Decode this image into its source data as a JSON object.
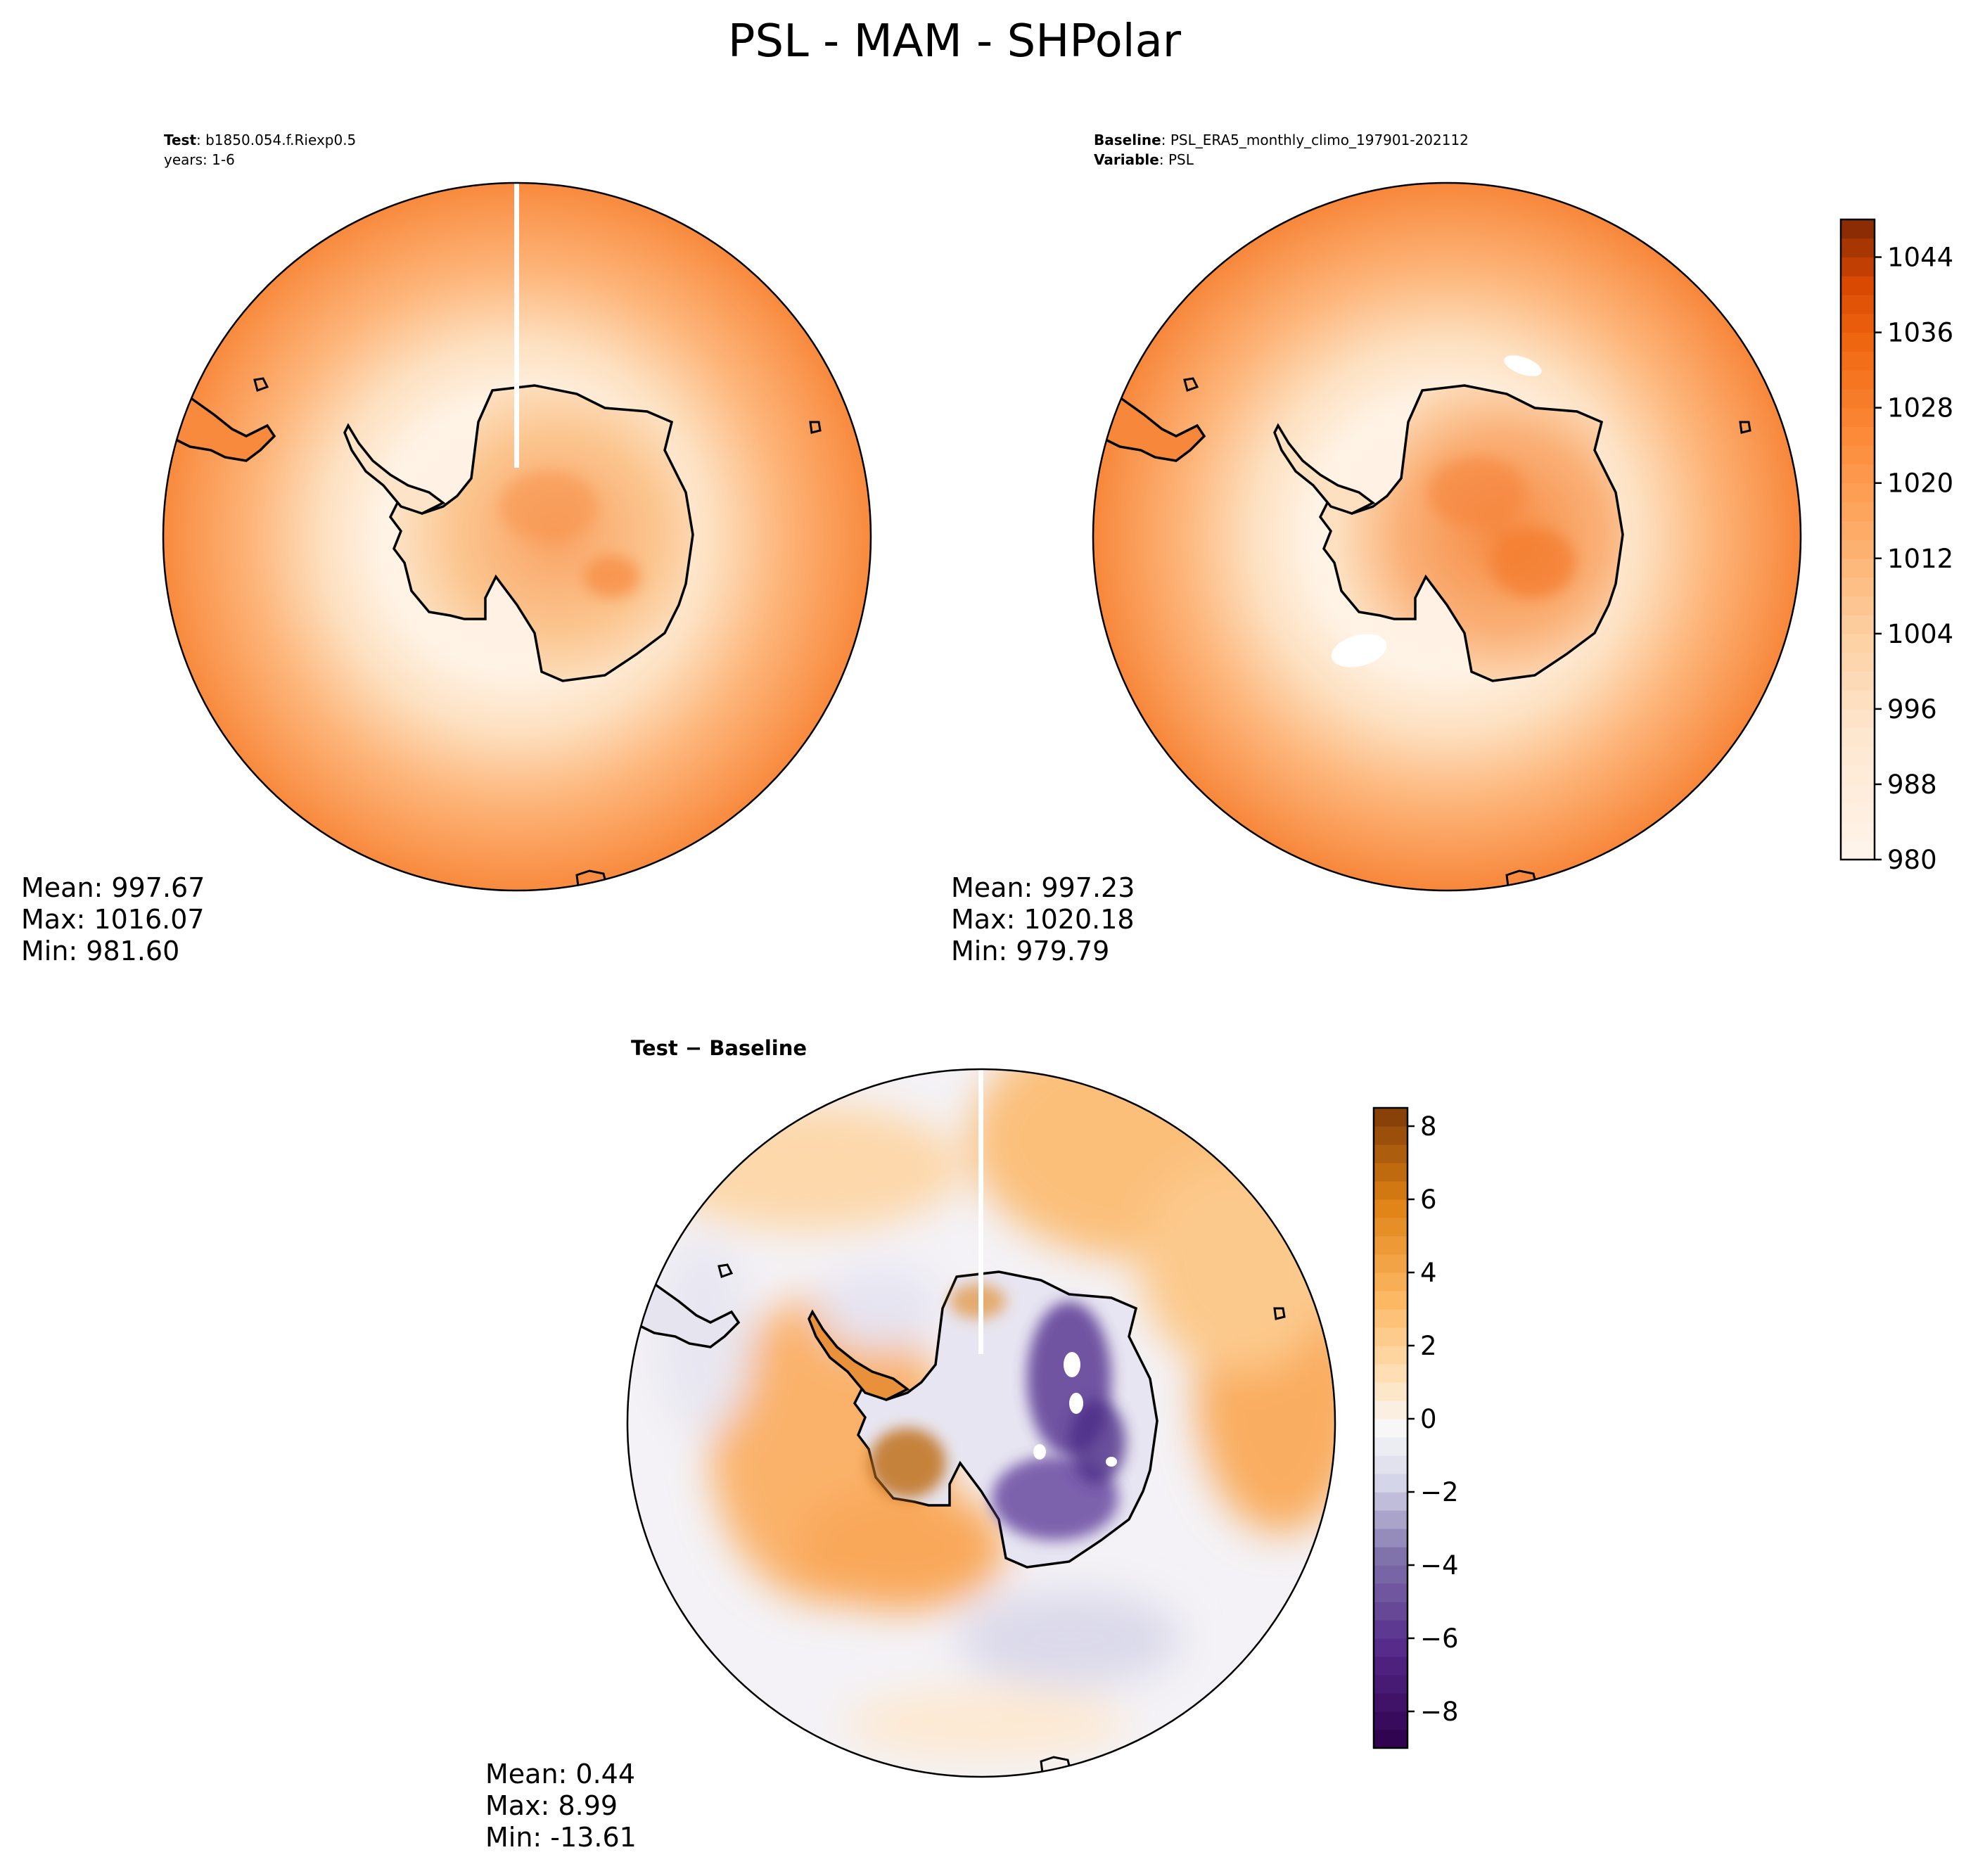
{
  "figure": {
    "suptitle": "PSL - MAM - SHPolar"
  },
  "chart_data": [
    {
      "type": "heatmap",
      "panel": "test",
      "projection": "south-polar-stereographic",
      "header_line1_bold": "Test",
      "header_line1_text": ": b1850.054.f.Riexp0.5",
      "header_line2_text": "years: 1-6",
      "stats": {
        "mean": "Mean: 997.67",
        "max": "Max: 1016.07",
        "min": "Min: 981.60"
      },
      "colormap": "Oranges"
    },
    {
      "type": "heatmap",
      "panel": "baseline",
      "projection": "south-polar-stereographic",
      "header_line1_bold": "Baseline",
      "header_line1_text": ": PSL_ERA5_monthly_climo_197901-202112",
      "header_line2_bold": "Variable",
      "header_line2_text": ": PSL",
      "stats": {
        "mean": "Mean: 997.23",
        "max": "Max: 1020.18",
        "min": "Min: 979.79"
      },
      "colormap": "Oranges",
      "colorbar": {
        "range": [
          980,
          1048
        ],
        "levels": 34,
        "ticks": [
          "980",
          "988",
          "996",
          "1004",
          "1012",
          "1020",
          "1028",
          "1036",
          "1044"
        ],
        "tick_values": [
          980,
          988,
          996,
          1004,
          1012,
          1020,
          1028,
          1036,
          1044
        ]
      }
    },
    {
      "type": "heatmap",
      "panel": "difference",
      "projection": "south-polar-stereographic",
      "title": "Test − Baseline",
      "stats": {
        "mean": "Mean:  0.44",
        "max": "Max:  8.99",
        "min": "Min: -13.61"
      },
      "colormap": "PuOr_r",
      "colorbar": {
        "range": [
          -9,
          8.5
        ],
        "levels": 35,
        "ticks": [
          "−8",
          "−6",
          "−4",
          "−2",
          "0",
          "2",
          "4",
          "6",
          "8"
        ],
        "tick_values": [
          -8,
          -6,
          -4,
          -2,
          0,
          2,
          4,
          6,
          8
        ]
      }
    }
  ],
  "colors": {
    "oranges_low": "#fff5eb",
    "oranges_high": "#7f2704",
    "diverging_low": "#2d004b",
    "diverging_mid": "#f7f7f7",
    "diverging_high": "#7f3b08"
  }
}
